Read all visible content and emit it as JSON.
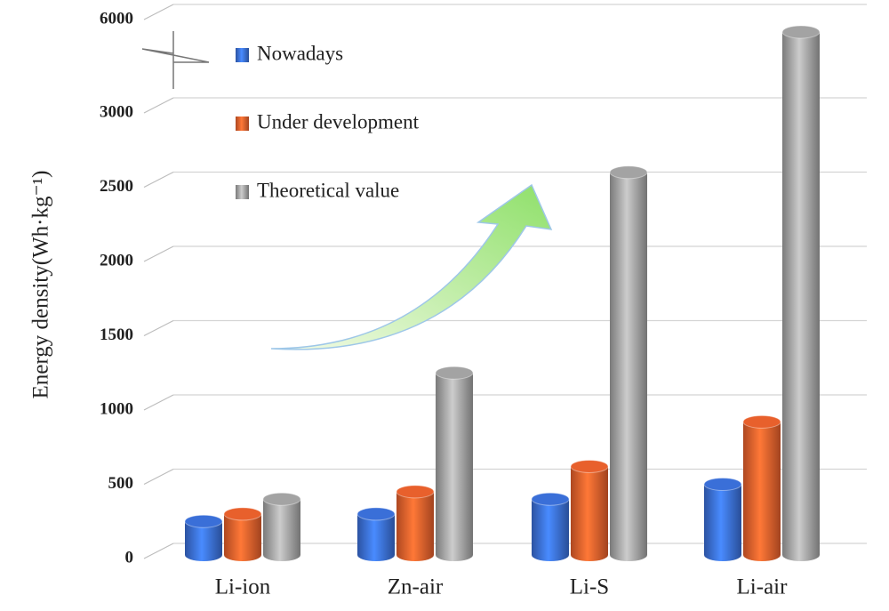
{
  "chart_data": {
    "type": "bar3d",
    "y_label": "Energy density(Wh·kg⁻¹)",
    "categories": [
      "Li-ion",
      "Zn-air",
      "Li-S",
      "Li-air"
    ],
    "series": [
      {
        "name": "Nowadays",
        "color": "#3a6fd8",
        "values": [
          250,
          300,
          400,
          500
        ]
      },
      {
        "name": "Under development",
        "color": "#e8602c",
        "values": [
          300,
          450,
          620,
          920
        ]
      },
      {
        "name": "Theoretical value",
        "color": "#a3a3a3",
        "values": [
          400,
          1250,
          2600,
          5600
        ]
      }
    ],
    "ylim": [
      0,
      6000
    ],
    "yticks": [
      0,
      500,
      1000,
      1500,
      2000,
      2500,
      3000,
      6000
    ],
    "axis_break": true,
    "grid": true,
    "legend": "upper left"
  }
}
